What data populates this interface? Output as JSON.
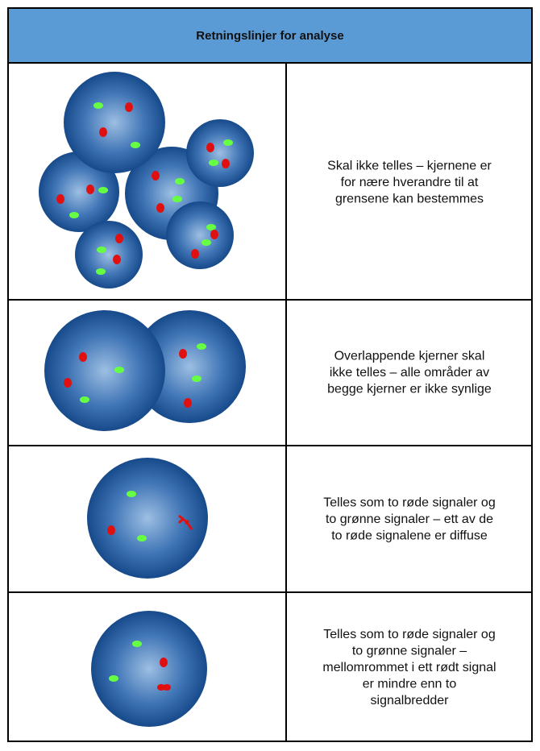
{
  "header": {
    "title": "Retningslinjer for analyse"
  },
  "rows": [
    {
      "lines": [
        "Skal ikke telles – kjernene er",
        "for nære hverandre til at",
        "grensene kan bestemmes"
      ]
    },
    {
      "lines": [
        "Overlappende kjerner skal",
        "ikke telles – alle områder av",
        "begge kjerner er ikke synlige"
      ]
    },
    {
      "lines": [
        "Telles som to røde signaler og",
        "to grønne signaler – ett av de",
        "to røde signalene er diffuse"
      ]
    },
    {
      "lines": [
        "Telles som to røde signaler og",
        "to grønne signaler –",
        "mellomrommet i ett rødt signal",
        "er mindre enn to",
        "signalbredder"
      ]
    }
  ]
}
